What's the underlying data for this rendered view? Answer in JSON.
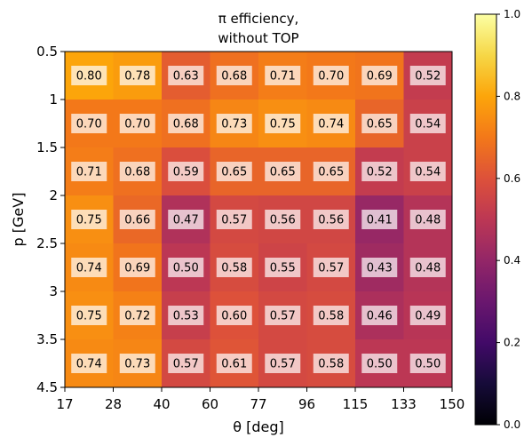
{
  "chart_data": {
    "type": "heatmap",
    "title_line1": "π efficiency,",
    "title_line2": "without TOP",
    "xlabel": "θ [deg]",
    "ylabel": "p [GeV]",
    "x_edges": [
      "17",
      "28",
      "40",
      "60",
      "77",
      "96",
      "115",
      "133",
      "150"
    ],
    "y_edges": [
      "0.5",
      "1",
      "1.5",
      "2",
      "2.5",
      "3",
      "3.5",
      "4.5"
    ],
    "values": [
      [
        0.8,
        0.78,
        0.63,
        0.68,
        0.71,
        0.7,
        0.69,
        0.52
      ],
      [
        0.7,
        0.7,
        0.68,
        0.73,
        0.75,
        0.74,
        0.65,
        0.54
      ],
      [
        0.71,
        0.68,
        0.59,
        0.65,
        0.65,
        0.65,
        0.52,
        0.54
      ],
      [
        0.75,
        0.66,
        0.47,
        0.57,
        0.56,
        0.56,
        0.41,
        0.48
      ],
      [
        0.74,
        0.69,
        0.5,
        0.58,
        0.55,
        0.57,
        0.43,
        0.48
      ],
      [
        0.75,
        0.72,
        0.53,
        0.6,
        0.57,
        0.58,
        0.46,
        0.49
      ],
      [
        0.74,
        0.73,
        0.57,
        0.61,
        0.57,
        0.58,
        0.5,
        0.5
      ]
    ],
    "labels": [
      [
        "0.80",
        "0.78",
        "0.63",
        "0.68",
        "0.71",
        "0.70",
        "0.69",
        "0.52"
      ],
      [
        "0.70",
        "0.70",
        "0.68",
        "0.73",
        "0.75",
        "0.74",
        "0.65",
        "0.54"
      ],
      [
        "0.71",
        "0.68",
        "0.59",
        "0.65",
        "0.65",
        "0.65",
        "0.52",
        "0.54"
      ],
      [
        "0.75",
        "0.66",
        "0.47",
        "0.57",
        "0.56",
        "0.56",
        "0.41",
        "0.48"
      ],
      [
        "0.74",
        "0.69",
        "0.50",
        "0.58",
        "0.55",
        "0.57",
        "0.43",
        "0.48"
      ],
      [
        "0.75",
        "0.72",
        "0.53",
        "0.60",
        "0.57",
        "0.58",
        "0.46",
        "0.49"
      ],
      [
        "0.74",
        "0.73",
        "0.57",
        "0.61",
        "0.57",
        "0.58",
        "0.50",
        "0.50"
      ]
    ],
    "colormap": "inferno",
    "clim": [
      0,
      1
    ],
    "colorbar_ticks": [
      "0.0",
      "0.2",
      "0.4",
      "0.6",
      "0.8",
      "1.0"
    ],
    "colorbar_tick_values": [
      0.0,
      0.2,
      0.4,
      0.6,
      0.8,
      1.0
    ],
    "grid": false
  }
}
